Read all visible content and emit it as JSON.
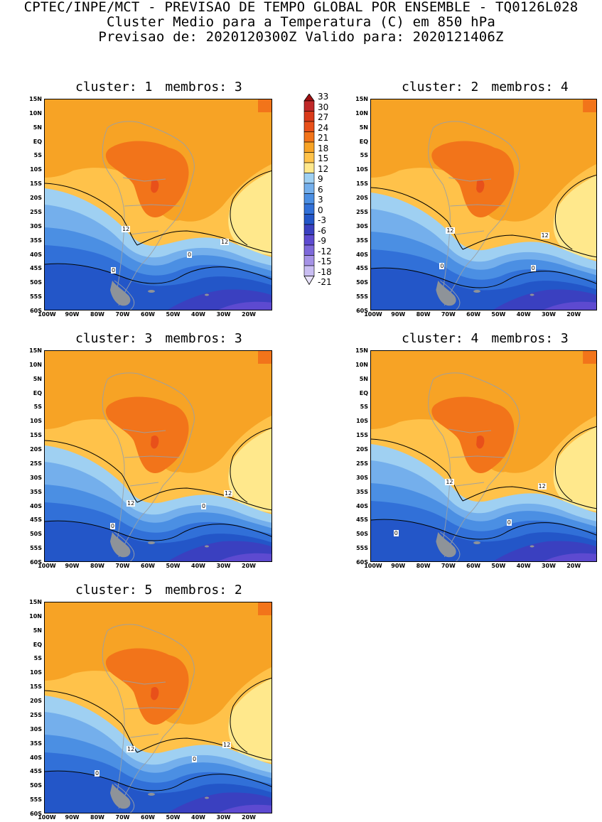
{
  "header": {
    "line1": "CPTEC/INPE/MCT - PREVISAO DE TEMPO GLOBAL POR ENSEMBLE - TQ0126L028",
    "line2": "Cluster Medio para a Temperatura (C) em 850 hPa",
    "line3": "Previsao de: 2020120300Z   Valido para: 2020121406Z"
  },
  "axes": {
    "lat_labels": [
      "15N",
      "10N",
      "5N",
      "EQ",
      "5S",
      "10S",
      "15S",
      "20S",
      "25S",
      "30S",
      "35S",
      "40S",
      "45S",
      "50S",
      "55S",
      "60S"
    ],
    "lon_labels": [
      "100W",
      "90W",
      "80W",
      "70W",
      "60W",
      "50W",
      "40W",
      "30W",
      "20W"
    ]
  },
  "colorbar": {
    "labels": [
      "33",
      "30",
      "27",
      "24",
      "21",
      "18",
      "15",
      "12",
      "9",
      "6",
      "3",
      "0",
      "-3",
      "-6",
      "-9",
      "-12",
      "-15",
      "-18",
      "-21"
    ],
    "colors": [
      "#9e1012",
      "#c02828",
      "#d93a1a",
      "#e8501a",
      "#f2741a",
      "#f7a325",
      "#ffc24a",
      "#ffe88c",
      "#9fd0f2",
      "#74afec",
      "#4b8fe3",
      "#3170d8",
      "#2356c8",
      "#3a40c0",
      "#5d4ad0",
      "#7d68da",
      "#a592e6",
      "#c9bdf2",
      "#e8e2fa"
    ]
  },
  "panels": [
    {
      "cluster_label": "cluster: 1",
      "members_label": "membros: 3",
      "contours": [
        {
          "value": "12"
        },
        {
          "value": "12"
        },
        {
          "value": "0"
        },
        {
          "value": "0"
        }
      ]
    },
    {
      "cluster_label": "cluster: 2",
      "members_label": "membros: 4",
      "contours": [
        {
          "value": "12"
        },
        {
          "value": "12"
        },
        {
          "value": "0"
        },
        {
          "value": "0"
        }
      ]
    },
    {
      "cluster_label": "cluster: 3",
      "members_label": "membros: 3",
      "contours": [
        {
          "value": "12"
        },
        {
          "value": "12"
        },
        {
          "value": "0"
        },
        {
          "value": "0"
        }
      ]
    },
    {
      "cluster_label": "cluster: 4",
      "members_label": "membros: 3",
      "contours": [
        {
          "value": "12"
        },
        {
          "value": "12"
        },
        {
          "value": "0"
        },
        {
          "value": "0"
        }
      ]
    },
    {
      "cluster_label": "cluster: 5",
      "members_label": "membros: 2",
      "contours": [
        {
          "value": "12"
        },
        {
          "value": "12"
        },
        {
          "value": "0"
        },
        {
          "value": "0"
        }
      ]
    }
  ]
}
